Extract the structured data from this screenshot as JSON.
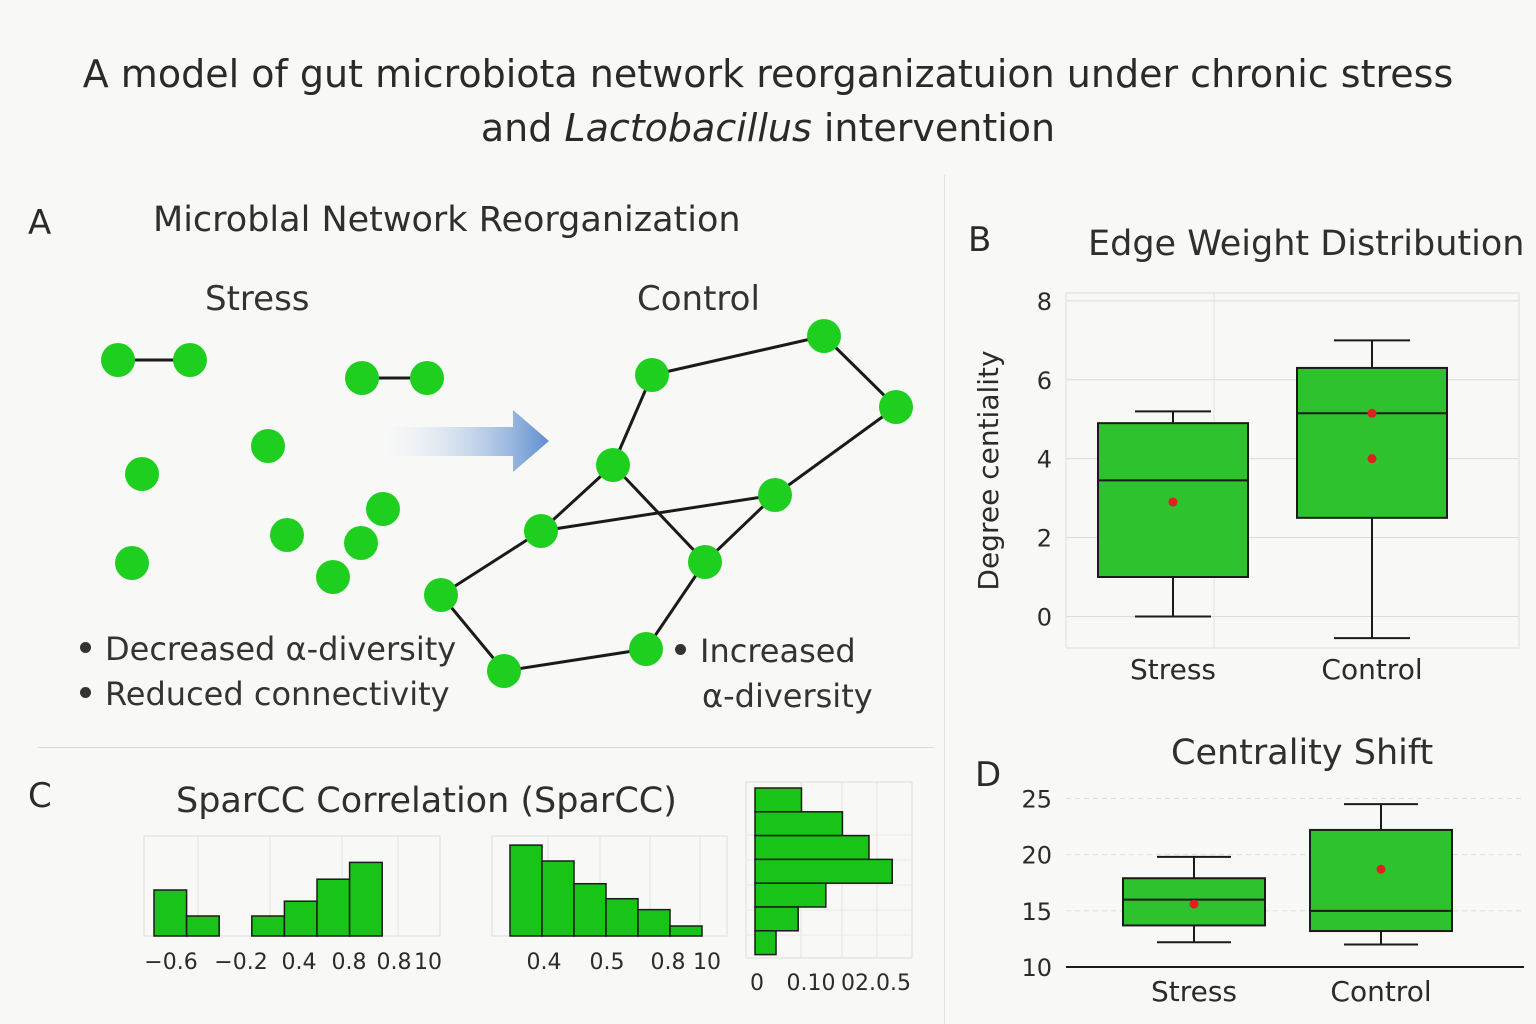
{
  "title": {
    "line1": "A model of gut microbiota network reorganizatuion under chronic stress",
    "line2_prefix": "and ",
    "line2_italic": "Lactobacillus",
    "line2_suffix": " intervention"
  },
  "colors": {
    "node": "#1fcf1f",
    "bar_fill": "#2ec22e",
    "bar_fill_c": "#19c419",
    "stroke": "#1a1a1a",
    "mean_dot": "#e02020",
    "arrow_start": "#ffffff",
    "arrow_end": "#5f8fcf"
  },
  "panel_a": {
    "letter": "A",
    "title": "Microblal Network Reorganization",
    "stress_label": "Stress",
    "control_label": "Control",
    "stress_bullets": [
      "Decreased α-diversity",
      "Reduced connectivity"
    ],
    "control_bullet_line1": "Increased",
    "control_bullet_line2": "α-diversity",
    "arrow_icon": "right-arrow-icon"
  },
  "panel_b": {
    "letter": "B",
    "title": "Edge Weight Distribution"
  },
  "panel_c": {
    "letter": "C",
    "title": "SparCC Correlation  (SparCC)"
  },
  "panel_d": {
    "letter": "D",
    "title": "Centrality Shift"
  },
  "chart_data": [
    {
      "id": "edge-weight-boxplot",
      "type": "box",
      "ylabel": "Degree centiality",
      "ylim": [
        -0.8,
        8.2
      ],
      "yticks": [
        0,
        2,
        4,
        6,
        8
      ],
      "grid": true,
      "categories": [
        "Stress",
        "Control"
      ],
      "boxes": [
        {
          "category": "Stress",
          "whisker_low": 0,
          "q1": 1.0,
          "median": 3.45,
          "q3": 4.9,
          "whisker_high": 5.2,
          "means": [
            2.9
          ]
        },
        {
          "category": "Control",
          "whisker_low": -0.55,
          "q1": 2.5,
          "median": 5.15,
          "q3": 6.3,
          "whisker_high": 7.0,
          "means": [
            5.15,
            4.0
          ]
        }
      ]
    },
    {
      "id": "centrality-shift-boxplot",
      "type": "box",
      "ylabel": "",
      "ylim": [
        10,
        27
      ],
      "yticks": [
        10,
        15,
        20,
        25
      ],
      "grid": true,
      "categories": [
        "Stress",
        "Control"
      ],
      "boxes": [
        {
          "category": "Stress",
          "whisker_low": 12.2,
          "q1": 13.7,
          "median": 16.0,
          "q3": 17.9,
          "whisker_high": 19.8,
          "means": [
            15.6
          ]
        },
        {
          "category": "Control",
          "whisker_low": 12.0,
          "q1": 13.2,
          "median": 15.0,
          "q3": 22.2,
          "whisker_high": 24.5,
          "means": [
            18.7
          ]
        }
      ]
    },
    {
      "id": "sparcc-hist-1",
      "type": "bar",
      "tick_labels": [
        "−0.6",
        "−0.2",
        "0.4",
        "0.8",
        "0.8",
        "10"
      ],
      "values": [
        1.15,
        0.5,
        0,
        0.5,
        0.87,
        1.42,
        1.84
      ],
      "ylim": [
        0,
        2.5
      ],
      "grid": true
    },
    {
      "id": "sparcc-hist-2",
      "type": "bar",
      "tick_labels": [
        "0.4",
        "0.5",
        "0.8",
        "10"
      ],
      "values": [
        2.0,
        1.65,
        1.15,
        0.82,
        0.58,
        0.22
      ],
      "ylim": [
        0,
        2.2
      ],
      "grid": true
    },
    {
      "id": "sparcc-hist-3",
      "type": "bar",
      "orientation": "horizontal",
      "tick_labels": [
        "0",
        "0.10",
        "02.0.5"
      ],
      "values": [
        0.42,
        0.79,
        1.03,
        1.24,
        0.64,
        0.39,
        0.19
      ],
      "xlim": [
        0,
        1.5
      ],
      "grid": true
    }
  ]
}
